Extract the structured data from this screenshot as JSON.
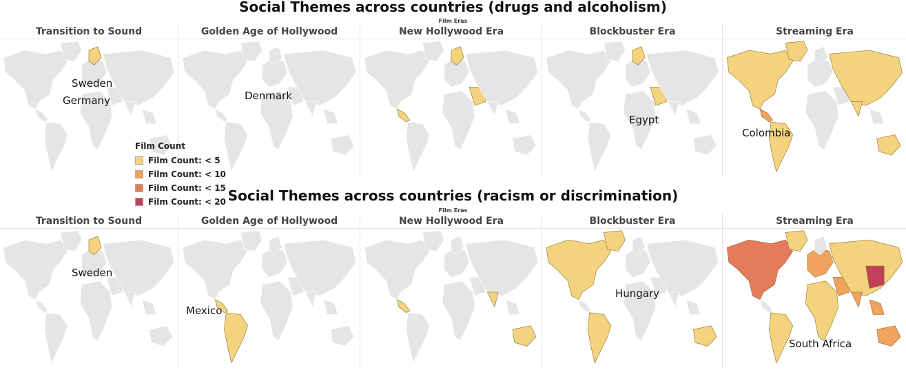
{
  "sections": [
    {
      "title": "Social Themes across countries (drugs and alcoholism)",
      "subtitle": "Film Eras",
      "eras": [
        "Transition to Sound",
        "Golden Age of Hollywood",
        "New Hollywood Era",
        "Blockbuster Era",
        "Streaming Era"
      ],
      "labels": [
        {
          "era": 0,
          "text": "Sweden"
        },
        {
          "era": 0,
          "text": "Germany"
        },
        {
          "era": 1,
          "text": "Denmark"
        },
        {
          "era": 3,
          "text": "Egypt"
        },
        {
          "era": 4,
          "text": "Colombia"
        }
      ]
    },
    {
      "title": "Social Themes across countries (racism or discrimination)",
      "subtitle": "Film Eras",
      "eras": [
        "Transition to Sound",
        "Golden Age of Hollywood",
        "New Hollywood Era",
        "Blockbuster Era",
        "Streaming Era"
      ],
      "labels": [
        {
          "era": 0,
          "text": "Sweden"
        },
        {
          "era": 1,
          "text": "Mexico"
        },
        {
          "era": 3,
          "text": "Hungary"
        },
        {
          "era": 4,
          "text": "South Africa"
        }
      ]
    }
  ],
  "legend": {
    "title": "Film Count",
    "items": [
      {
        "label": "Film Count: < 5",
        "color": "#f3d37e"
      },
      {
        "label": "Film Count: < 10",
        "color": "#f0a35e"
      },
      {
        "label": "Film Count: < 15",
        "color": "#e57b5c"
      },
      {
        "label": "Film Count: < 20",
        "color": "#c43f5c"
      }
    ]
  },
  "colors": {
    "land_default": "#e5e5e5",
    "land_border": "#ffffff",
    "highlight_border": "#8a6d2a"
  }
}
